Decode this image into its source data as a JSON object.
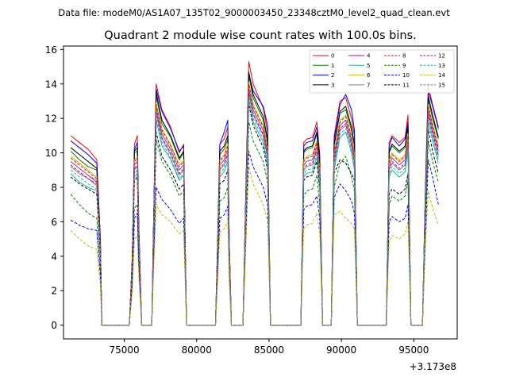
{
  "chart_data": {
    "type": "line",
    "suptitle": "Data file: modeM0/AS1A07_135T02_9000003450_23348cztM0_level2_quad_clean.evt",
    "title": "Quadrant 2 module wise count rates with 100.0s bins.",
    "xlabel": "",
    "ylabel": "",
    "x_offset_label": "+3.173e8",
    "xlim": [
      70800,
      98000
    ],
    "ylim": [
      -0.8,
      16.2
    ],
    "x_ticks": [
      75000,
      80000,
      85000,
      90000,
      95000
    ],
    "x_tick_labels": [
      "75000",
      "80000",
      "85000",
      "90000",
      "95000"
    ],
    "y_ticks": [
      0,
      2,
      4,
      6,
      8,
      10,
      12,
      14,
      16
    ],
    "y_tick_labels": [
      "0",
      "2",
      "4",
      "6",
      "8",
      "10",
      "12",
      "14",
      "16"
    ],
    "grid": false,
    "legend_location": "top-right",
    "legend_columns": 4,
    "x": [
      71300,
      71900,
      72500,
      73100,
      73350,
      73450,
      73600,
      74800,
      75350,
      75550,
      75700,
      75900,
      76000,
      76200,
      76900,
      77000,
      77200,
      77600,
      78200,
      78800,
      79100,
      79300,
      81300,
      81450,
      81600,
      81900,
      82150,
      82250,
      82400,
      83200,
      83400,
      83600,
      83900,
      84600,
      84900,
      85100,
      87200,
      87400,
      87600,
      88000,
      88300,
      88500,
      88700,
      89300,
      89500,
      89900,
      90300,
      90700,
      90900,
      91100,
      93100,
      93300,
      93500,
      94000,
      94400,
      94600,
      94800,
      95600,
      95800,
      96000,
      96300,
      96700
    ],
    "series": [
      {
        "name": "0",
        "color": "#ff0000",
        "dash": "solid",
        "values": [
          11.0,
          10.6,
          10.2,
          9.6,
          5.0,
          0.0,
          0.0,
          0.0,
          0.0,
          4.0,
          10.5,
          11.0,
          6.0,
          0.0,
          0.0,
          5.0,
          14.0,
          12.5,
          11.5,
          10.0,
          10.5,
          0.0,
          0.0,
          5.0,
          10.5,
          10.8,
          11.5,
          5.0,
          0.0,
          0.0,
          8.0,
          15.3,
          14.0,
          12.6,
          11.2,
          0.0,
          0.0,
          10.6,
          10.8,
          10.9,
          11.8,
          10.0,
          0.0,
          0.0,
          11.0,
          13.0,
          13.2,
          12.0,
          11.0,
          0.0,
          0.0,
          10.6,
          11.0,
          10.6,
          10.9,
          12.2,
          0.0,
          0.0,
          8.0,
          13.9,
          12.8,
          11.5
        ]
      },
      {
        "name": "1",
        "color": "#008000",
        "dash": "solid",
        "values": [
          10.1,
          9.6,
          9.2,
          9.0,
          4.6,
          0.0,
          0.0,
          0.0,
          0.0,
          3.8,
          10.0,
          10.1,
          5.5,
          0.0,
          0.0,
          4.7,
          13.3,
          11.7,
          10.9,
          9.6,
          10.0,
          0.0,
          0.0,
          4.6,
          9.9,
          10.2,
          10.8,
          4.7,
          0.0,
          0.0,
          7.5,
          14.5,
          13.2,
          11.9,
          10.6,
          0.0,
          0.0,
          10.0,
          10.2,
          10.3,
          11.1,
          9.4,
          0.0,
          0.0,
          10.4,
          12.3,
          12.5,
          11.3,
          10.4,
          0.0,
          0.0,
          10.0,
          10.4,
          10.0,
          10.3,
          11.5,
          0.0,
          0.0,
          7.5,
          13.1,
          12.0,
          10.8
        ]
      },
      {
        "name": "2",
        "color": "#0000ff",
        "dash": "solid",
        "values": [
          10.7,
          10.3,
          9.9,
          9.4,
          4.9,
          0.0,
          0.0,
          0.0,
          0.0,
          3.9,
          10.2,
          10.6,
          5.8,
          0.0,
          0.0,
          4.9,
          13.7,
          12.4,
          11.4,
          10.1,
          10.4,
          0.0,
          0.0,
          4.9,
          10.5,
          11.2,
          11.9,
          5.0,
          0.0,
          0.0,
          7.8,
          14.6,
          13.6,
          12.7,
          11.6,
          0.0,
          0.0,
          10.4,
          10.6,
          10.7,
          11.5,
          9.8,
          0.0,
          0.0,
          10.8,
          12.8,
          13.4,
          12.5,
          11.3,
          0.0,
          0.0,
          10.4,
          10.9,
          10.4,
          10.8,
          11.8,
          0.0,
          0.0,
          7.8,
          13.6,
          12.7,
          11.4
        ]
      },
      {
        "name": "3",
        "color": "#000000",
        "dash": "solid",
        "values": [
          10.3,
          9.9,
          9.5,
          9.1,
          4.7,
          0.0,
          0.0,
          0.0,
          0.0,
          3.8,
          10.1,
          10.3,
          5.6,
          0.0,
          0.0,
          4.8,
          13.5,
          11.9,
          11.0,
          9.7,
          10.1,
          0.0,
          0.0,
          4.7,
          10.1,
          10.4,
          11.0,
          4.8,
          0.0,
          0.0,
          7.6,
          14.7,
          13.4,
          12.1,
          10.8,
          0.0,
          0.0,
          10.1,
          10.3,
          10.4,
          11.2,
          9.5,
          0.0,
          0.0,
          10.5,
          12.4,
          12.7,
          11.5,
          10.5,
          0.0,
          0.0,
          10.1,
          10.5,
          10.1,
          10.4,
          11.6,
          0.0,
          0.0,
          7.6,
          13.3,
          12.2,
          10.9
        ]
      },
      {
        "name": "4",
        "color": "#bf00bf",
        "dash": "solid",
        "values": [
          9.5,
          9.1,
          8.7,
          8.3,
          4.3,
          0.0,
          0.0,
          0.0,
          0.0,
          3.5,
          9.3,
          9.5,
          5.1,
          0.0,
          0.0,
          4.4,
          12.6,
          11.1,
          10.2,
          9.0,
          9.3,
          0.0,
          0.0,
          4.3,
          9.3,
          9.6,
          10.2,
          4.4,
          0.0,
          0.0,
          7.1,
          13.8,
          12.5,
          11.3,
          10.0,
          0.0,
          0.0,
          9.3,
          9.5,
          9.6,
          10.4,
          8.8,
          0.0,
          0.0,
          9.7,
          11.6,
          11.9,
          10.7,
          9.7,
          0.0,
          0.0,
          9.3,
          9.7,
          9.3,
          9.6,
          10.8,
          0.0,
          0.0,
          7.1,
          12.5,
          11.4,
          10.1
        ]
      },
      {
        "name": "5",
        "color": "#20b2aa",
        "dash": "solid",
        "values": [
          8.8,
          8.3,
          8.0,
          7.8,
          4.0,
          0.0,
          0.0,
          0.0,
          0.0,
          3.2,
          8.6,
          8.8,
          4.7,
          0.0,
          0.0,
          4.0,
          11.9,
          10.4,
          9.6,
          8.4,
          8.7,
          0.0,
          0.0,
          4.0,
          8.6,
          8.9,
          9.5,
          4.1,
          0.0,
          0.0,
          6.6,
          13.1,
          11.8,
          10.6,
          9.3,
          0.0,
          0.0,
          8.6,
          8.8,
          8.9,
          9.7,
          8.1,
          0.0,
          0.0,
          9.0,
          10.9,
          11.2,
          10.0,
          9.0,
          0.0,
          0.0,
          8.6,
          9.0,
          8.6,
          8.9,
          10.1,
          0.0,
          0.0,
          6.6,
          11.8,
          10.7,
          9.4
        ]
      },
      {
        "name": "6",
        "color": "#bfbf00",
        "dash": "solid",
        "values": [
          9.8,
          9.4,
          9.0,
          8.6,
          4.4,
          0.0,
          0.0,
          0.0,
          0.0,
          3.6,
          9.6,
          9.8,
          5.3,
          0.0,
          0.0,
          4.5,
          12.9,
          11.4,
          10.5,
          9.3,
          9.6,
          0.0,
          0.0,
          4.5,
          9.6,
          9.9,
          10.5,
          4.5,
          0.0,
          0.0,
          7.3,
          14.1,
          12.8,
          11.6,
          10.3,
          0.0,
          0.0,
          9.6,
          9.8,
          9.9,
          10.7,
          9.1,
          0.0,
          0.0,
          10.0,
          11.9,
          12.2,
          11.0,
          10.0,
          0.0,
          0.0,
          9.6,
          10.0,
          9.6,
          9.9,
          11.1,
          0.0,
          0.0,
          7.3,
          12.8,
          11.7,
          10.4
        ]
      },
      {
        "name": "7",
        "color": "#808080",
        "dash": "solid",
        "values": [
          9.2,
          8.8,
          8.5,
          8.1,
          4.2,
          0.0,
          0.0,
          0.0,
          0.0,
          3.4,
          9.0,
          9.2,
          4.9,
          0.0,
          0.0,
          4.2,
          12.3,
          10.8,
          9.9,
          8.7,
          9.0,
          0.0,
          0.0,
          4.2,
          9.0,
          9.3,
          9.9,
          4.3,
          0.0,
          0.0,
          6.9,
          13.5,
          12.2,
          11.0,
          9.7,
          0.0,
          0.0,
          9.0,
          9.2,
          9.3,
          10.1,
          8.5,
          0.0,
          0.0,
          9.4,
          11.3,
          11.6,
          10.4,
          9.4,
          0.0,
          0.0,
          9.0,
          9.4,
          9.0,
          9.3,
          10.5,
          0.0,
          0.0,
          6.9,
          12.2,
          11.1,
          9.8
        ]
      },
      {
        "name": "8",
        "color": "#ff0000",
        "dash": "dashed",
        "values": [
          9.7,
          9.3,
          8.9,
          8.5,
          4.4,
          0.0,
          0.0,
          0.0,
          0.0,
          3.6,
          9.5,
          9.7,
          5.2,
          0.0,
          0.0,
          4.5,
          12.8,
          11.3,
          10.4,
          9.2,
          9.5,
          0.0,
          0.0,
          4.4,
          9.5,
          9.8,
          10.4,
          4.5,
          0.0,
          0.0,
          7.2,
          14.0,
          12.7,
          11.5,
          10.2,
          0.0,
          0.0,
          9.5,
          9.7,
          9.8,
          10.6,
          9.0,
          0.0,
          0.0,
          9.9,
          11.8,
          12.1,
          10.9,
          9.9,
          0.0,
          0.0,
          9.5,
          9.9,
          9.5,
          9.8,
          11.0,
          0.0,
          0.0,
          7.2,
          12.7,
          11.6,
          10.3
        ]
      },
      {
        "name": "9",
        "color": "#008000",
        "dash": "dashed",
        "values": [
          7.6,
          7.0,
          6.5,
          6.2,
          3.2,
          0.0,
          0.0,
          0.0,
          0.0,
          2.6,
          6.8,
          7.0,
          3.7,
          0.0,
          0.0,
          3.2,
          10.8,
          9.5,
          8.7,
          7.5,
          7.8,
          0.0,
          0.0,
          3.4,
          7.2,
          7.4,
          8.0,
          3.4,
          0.0,
          0.0,
          5.8,
          11.8,
          10.7,
          9.5,
          8.3,
          0.0,
          0.0,
          7.5,
          7.8,
          7.9,
          8.7,
          7.0,
          0.0,
          0.0,
          8.0,
          9.4,
          9.8,
          8.6,
          7.8,
          0.0,
          0.0,
          7.0,
          7.5,
          7.2,
          7.5,
          8.4,
          0.0,
          0.0,
          6.0,
          10.7,
          9.5,
          8.3
        ]
      },
      {
        "name": "10",
        "color": "#0000ff",
        "dash": "dashed",
        "values": [
          6.1,
          5.8,
          5.6,
          5.5,
          2.8,
          0.0,
          0.0,
          0.0,
          0.0,
          2.3,
          6.2,
          6.5,
          3.5,
          0.0,
          0.0,
          3.0,
          8.0,
          7.3,
          6.7,
          5.9,
          6.2,
          0.0,
          0.0,
          2.9,
          6.2,
          6.4,
          6.9,
          2.9,
          0.0,
          0.0,
          5.0,
          10.1,
          9.2,
          8.0,
          7.0,
          0.0,
          0.0,
          6.7,
          6.9,
          7.0,
          7.5,
          6.2,
          0.0,
          0.0,
          7.4,
          8.2,
          7.8,
          7.2,
          6.5,
          0.0,
          0.0,
          6.0,
          6.3,
          6.0,
          6.2,
          7.0,
          0.0,
          0.0,
          5.0,
          9.6,
          8.6,
          7.0
        ]
      },
      {
        "name": "11",
        "color": "#000000",
        "dash": "dashed",
        "values": [
          8.6,
          8.2,
          7.9,
          7.6,
          3.9,
          0.0,
          0.0,
          0.0,
          0.0,
          3.1,
          8.4,
          8.6,
          4.6,
          0.0,
          0.0,
          3.9,
          11.2,
          9.8,
          9.0,
          7.9,
          8.2,
          0.0,
          0.0,
          3.8,
          8.2,
          8.4,
          9.0,
          3.9,
          0.0,
          0.0,
          6.4,
          12.8,
          11.6,
          10.3,
          9.0,
          0.0,
          0.0,
          8.4,
          8.6,
          8.7,
          9.5,
          7.9,
          0.0,
          0.0,
          8.8,
          9.6,
          9.4,
          8.8,
          8.4,
          0.0,
          0.0,
          7.6,
          7.9,
          7.6,
          7.9,
          8.8,
          0.0,
          0.0,
          6.4,
          11.4,
          10.1,
          8.8
        ]
      },
      {
        "name": "12",
        "color": "#bf00bf",
        "dash": "dashed",
        "values": [
          9.3,
          8.9,
          8.5,
          8.2,
          4.2,
          0.0,
          0.0,
          0.0,
          0.0,
          3.4,
          9.1,
          9.3,
          5.0,
          0.0,
          0.0,
          4.3,
          12.4,
          10.9,
          10.0,
          8.8,
          9.1,
          0.0,
          0.0,
          4.2,
          9.1,
          9.4,
          10.0,
          4.3,
          0.0,
          0.0,
          7.0,
          13.6,
          12.3,
          11.1,
          9.8,
          0.0,
          0.0,
          9.1,
          9.3,
          9.4,
          10.2,
          8.6,
          0.0,
          0.0,
          9.5,
          11.4,
          11.7,
          10.5,
          9.5,
          0.0,
          0.0,
          9.1,
          9.5,
          9.1,
          9.4,
          10.6,
          0.0,
          0.0,
          7.0,
          12.3,
          11.2,
          9.9
        ]
      },
      {
        "name": "13",
        "color": "#20b2aa",
        "dash": "dashed",
        "values": [
          9.0,
          8.6,
          8.2,
          7.9,
          4.1,
          0.0,
          0.0,
          0.0,
          0.0,
          3.3,
          8.8,
          9.0,
          4.8,
          0.0,
          0.0,
          4.1,
          12.1,
          10.6,
          9.7,
          8.5,
          8.8,
          0.0,
          0.0,
          4.1,
          8.8,
          9.1,
          9.7,
          4.2,
          0.0,
          0.0,
          6.8,
          13.3,
          12.0,
          10.8,
          9.5,
          0.0,
          0.0,
          8.8,
          9.0,
          9.1,
          9.9,
          8.3,
          0.0,
          0.0,
          9.2,
          11.1,
          11.4,
          10.2,
          9.2,
          0.0,
          0.0,
          8.8,
          9.2,
          8.8,
          9.1,
          10.3,
          0.0,
          0.0,
          6.8,
          12.0,
          10.9,
          9.6
        ]
      },
      {
        "name": "14",
        "color": "#bfbf00",
        "dash": "dashed",
        "values": [
          5.5,
          5.0,
          4.6,
          4.4,
          2.3,
          0.0,
          0.0,
          0.0,
          0.0,
          1.9,
          5.0,
          5.2,
          2.8,
          0.0,
          0.0,
          2.5,
          7.0,
          6.4,
          6.0,
          5.3,
          5.5,
          0.0,
          0.0,
          2.5,
          5.4,
          5.6,
          6.0,
          2.5,
          0.0,
          0.0,
          4.6,
          9.2,
          8.2,
          7.0,
          6.0,
          0.0,
          0.0,
          5.6,
          5.8,
          5.9,
          6.5,
          5.3,
          0.0,
          0.0,
          6.4,
          6.6,
          6.2,
          5.9,
          5.6,
          0.0,
          0.0,
          4.8,
          5.2,
          5.0,
          5.3,
          6.0,
          0.0,
          0.0,
          4.6,
          7.8,
          6.8,
          5.8
        ]
      },
      {
        "name": "15",
        "color": "#808080",
        "dash": "dashed",
        "values": [
          9.5,
          9.1,
          8.7,
          8.4,
          4.3,
          0.0,
          0.0,
          0.0,
          0.0,
          3.5,
          9.3,
          9.5,
          5.1,
          0.0,
          0.0,
          4.4,
          12.6,
          11.1,
          10.2,
          9.0,
          9.3,
          0.0,
          0.0,
          4.3,
          9.3,
          9.6,
          10.2,
          4.4,
          0.0,
          0.0,
          7.1,
          13.8,
          12.5,
          11.3,
          10.0,
          0.0,
          0.0,
          9.3,
          9.5,
          9.6,
          10.4,
          8.8,
          0.0,
          0.0,
          9.7,
          11.6,
          11.9,
          10.7,
          9.7,
          0.0,
          0.0,
          9.3,
          9.7,
          9.3,
          9.6,
          10.8,
          0.0,
          0.0,
          7.1,
          12.5,
          11.4,
          10.1
        ]
      }
    ]
  }
}
